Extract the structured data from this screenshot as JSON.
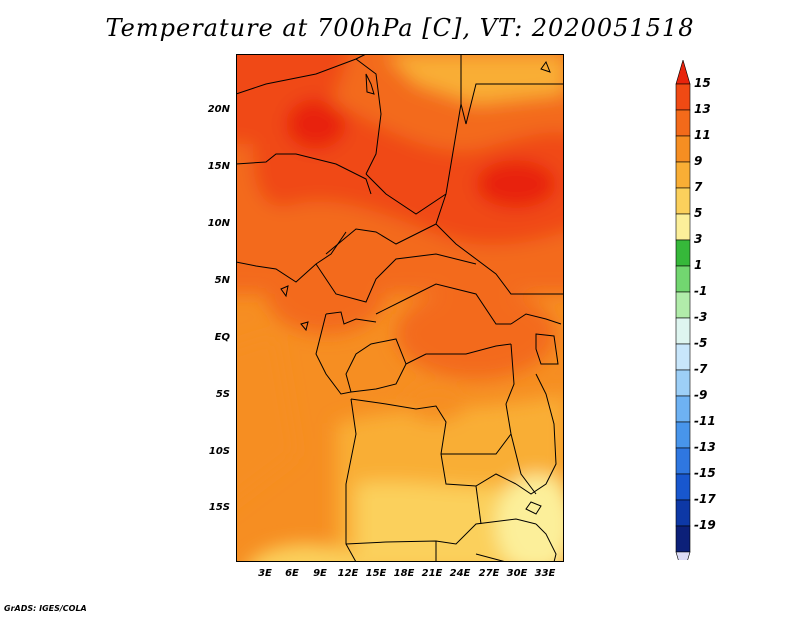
{
  "title": "Temperature at 700hPa [C], VT: 2020051518",
  "credit": "GrADS: IGES/COLA",
  "latitude_labels": [
    "20N",
    "15N",
    "10N",
    "5N",
    "EQ",
    "5S",
    "10S",
    "15S"
  ],
  "longitude_labels": [
    "3E",
    "6E",
    "9E",
    "12E",
    "15E",
    "18E",
    "21E",
    "24E",
    "27E",
    "30E",
    "33E"
  ],
  "colorbar": {
    "labels": [
      "15",
      "13",
      "11",
      "9",
      "7",
      "5",
      "3",
      "1",
      "-1",
      "-3",
      "-5",
      "-7",
      "-9",
      "-11",
      "-13",
      "-15",
      "-17",
      "-19"
    ],
    "colors": [
      "#e8240c",
      "#f04a14",
      "#f36a1a",
      "#f68e22",
      "#f9ae35",
      "#fbd05c",
      "#fcef9a",
      "#36b83a",
      "#72d670",
      "#b1ecaa",
      "#def5f0",
      "#c8e6fb",
      "#9dcff7",
      "#6eb2f3",
      "#4895eb",
      "#2f77e0",
      "#1857ce",
      "#0d38a6",
      "#0c2079",
      "#dcdcf6"
    ]
  }
}
